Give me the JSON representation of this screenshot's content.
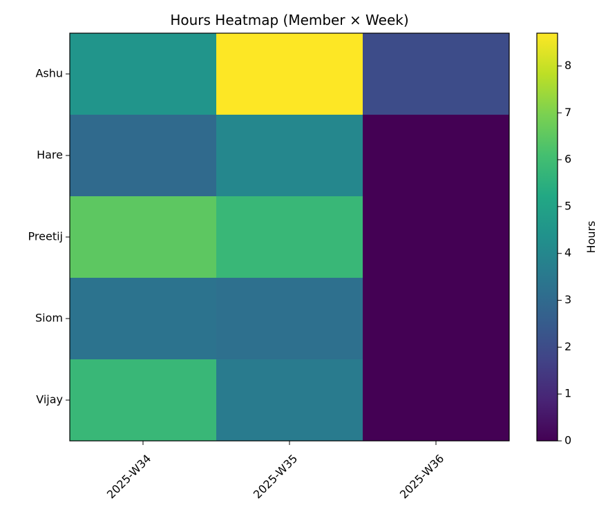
{
  "chart_data": {
    "type": "heatmap",
    "title": "Hours Heatmap (Member × Week)",
    "rows": [
      "Ashu",
      "Hare",
      "Preetij",
      "Siom",
      "Vijay"
    ],
    "columns": [
      "2025-W34",
      "2025-W35",
      "2025-W36"
    ],
    "values": [
      [
        4.5,
        8.7,
        2.0
      ],
      [
        3.0,
        4.0,
        0.0
      ],
      [
        6.5,
        5.8,
        0.0
      ],
      [
        3.3,
        3.2,
        0.0
      ],
      [
        5.8,
        3.6,
        0.0
      ]
    ],
    "colorbar": {
      "label": "Hours",
      "min": 0,
      "max": 8.7,
      "ticks": [
        "0",
        "1",
        "2",
        "3",
        "4",
        "5",
        "6",
        "7",
        "8"
      ],
      "colormap": "viridis"
    }
  }
}
